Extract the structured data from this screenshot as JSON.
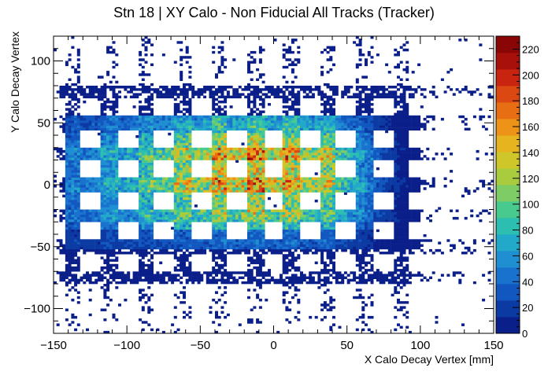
{
  "chart_data": {
    "type": "heatmap",
    "title": "Stn 18 | XY Calo - Non Fiducial All Tracks (Tracker)",
    "xlabel": "X Calo Decay Vertex [mm]",
    "ylabel": "Y Calo Decay Vertex",
    "xlim": [
      -150,
      150
    ],
    "ylim": [
      -120,
      120
    ],
    "zlim": [
      0,
      230
    ],
    "x_ticks": [
      -150,
      -100,
      -50,
      0,
      50,
      100,
      150
    ],
    "y_ticks": [
      -100,
      -50,
      0,
      50,
      100
    ],
    "z_ticks": [
      0,
      20,
      40,
      60,
      80,
      100,
      120,
      140,
      160,
      180,
      200,
      220
    ],
    "grid": false,
    "palette": "kBird / rainbow (dark blue to dark red)",
    "grid_lines_x_mm": [
      -137,
      -112,
      -87,
      -62,
      -37,
      -12,
      12,
      37,
      62,
      87
    ],
    "grid_lines_y_mm": [
      75,
      50,
      25,
      0,
      -25,
      -50,
      -75
    ],
    "intensity_peak": {
      "x": -12,
      "y": 12,
      "z": 225
    },
    "sparse_region": "x > 90 or |y| > 60: occupancy below ~10",
    "colorbar_colors": [
      "#0b1f8a",
      "#0c3aa3",
      "#1256bf",
      "#1a72cf",
      "#1f8fd2",
      "#22a8c8",
      "#2cbeb0",
      "#48c98e",
      "#7dcc66",
      "#a8cc3e",
      "#cfc629",
      "#e6b41f",
      "#ed9318",
      "#e86e14",
      "#db4812",
      "#c82410",
      "#a8100c",
      "#8a0606"
    ]
  }
}
